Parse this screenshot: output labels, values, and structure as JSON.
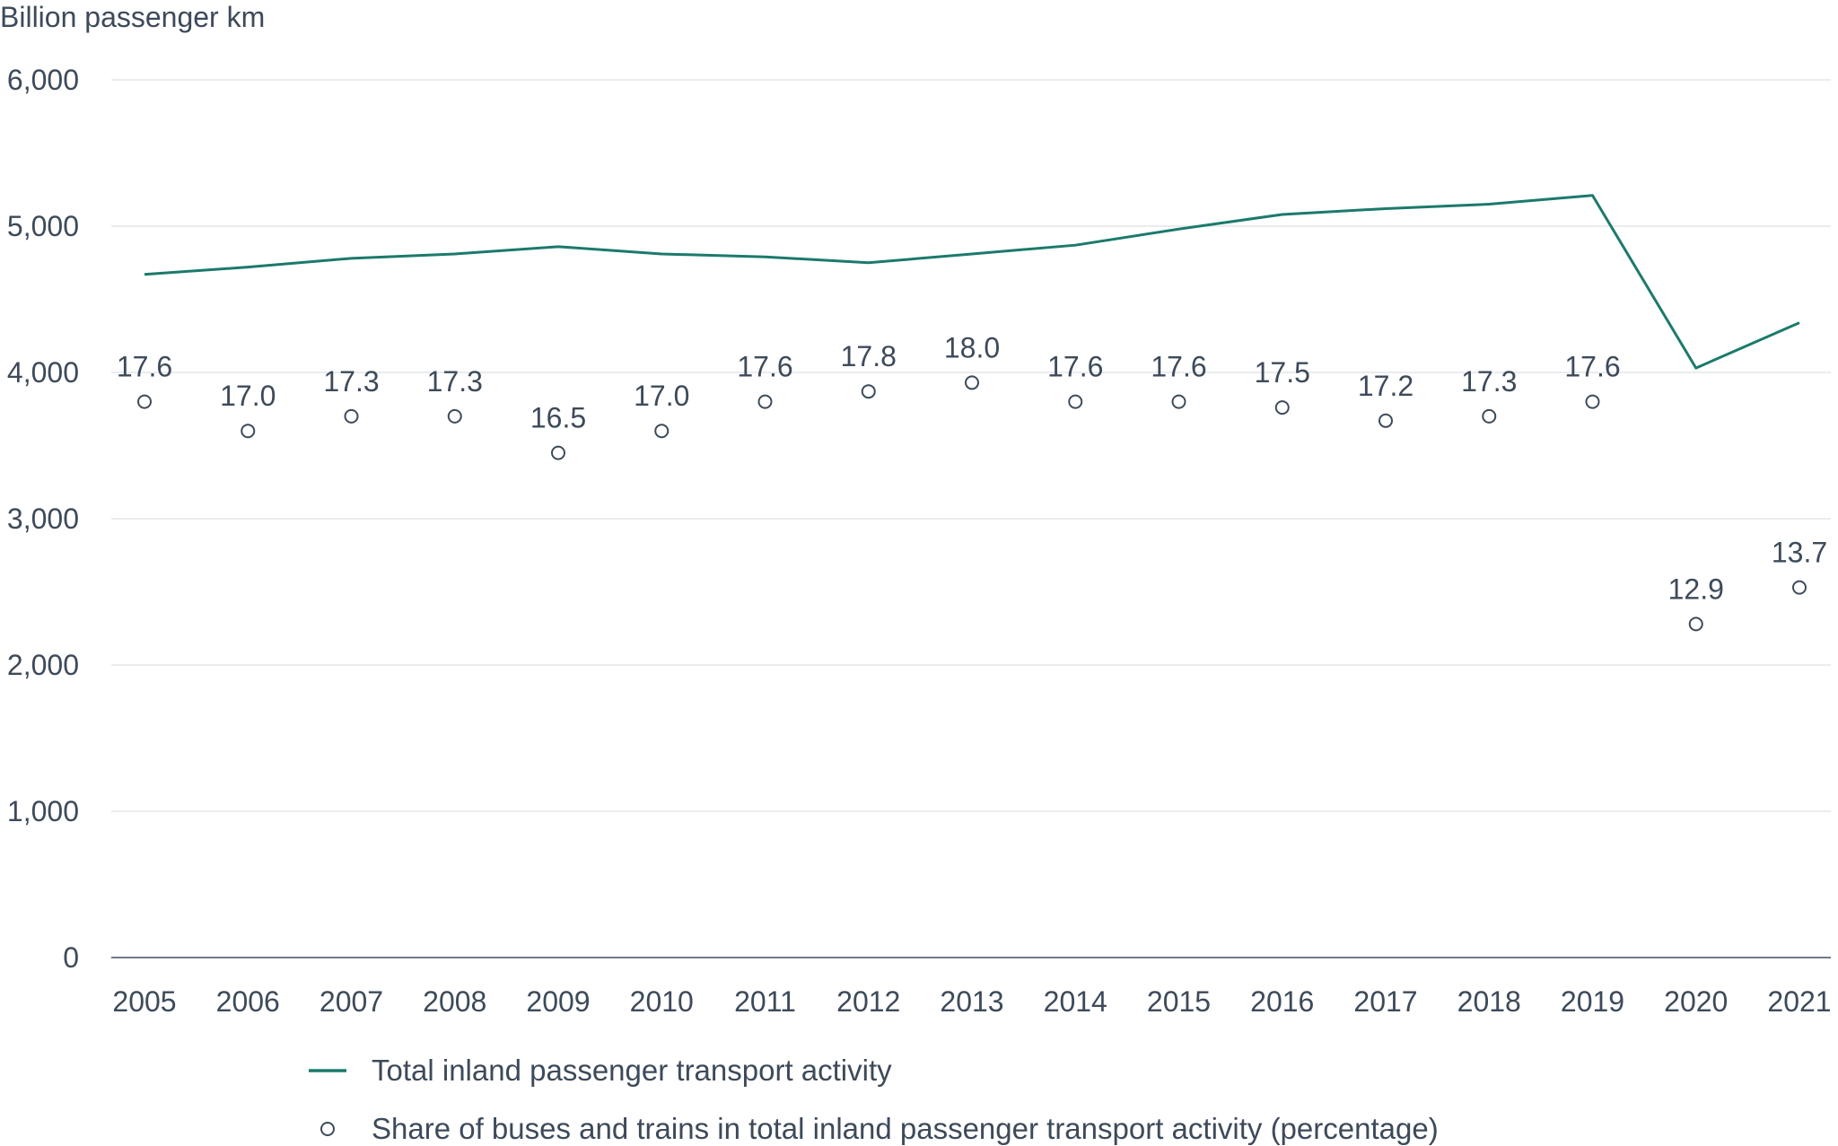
{
  "chart_data": {
    "type": "line",
    "ylabel": "Billion passenger km",
    "ylim": [
      0,
      6000
    ],
    "yticks": [
      0,
      1000,
      2000,
      3000,
      4000,
      5000,
      6000
    ],
    "ytick_labels": [
      "0",
      "1,000",
      "2,000",
      "3,000",
      "4,000",
      "5,000",
      "6,000"
    ],
    "categories": [
      "2005",
      "2006",
      "2007",
      "2008",
      "2009",
      "2010",
      "2011",
      "2012",
      "2013",
      "2014",
      "2015",
      "2016",
      "2017",
      "2018",
      "2019",
      "2020",
      "2021"
    ],
    "grid": true,
    "legend_placement": "bottom",
    "series": [
      {
        "name": "Total inland passenger transport activity",
        "kind": "line",
        "color": "#1b7a6b",
        "values": [
          4670,
          4720,
          4780,
          4810,
          4860,
          4810,
          4790,
          4750,
          4810,
          4870,
          4980,
          5080,
          5120,
          5150,
          5210,
          4030,
          4340
        ]
      },
      {
        "name": "Share of buses and trains in total inland passenger transport activity (percentage)",
        "kind": "marker",
        "color": "#3d4a5a",
        "values": [
          3800,
          3600,
          3700,
          3700,
          3450,
          3600,
          3800,
          3870,
          3930,
          3800,
          3800,
          3760,
          3670,
          3700,
          3800,
          2280,
          2530
        ],
        "labels": [
          "17.6",
          "17.0",
          "17.3",
          "17.3",
          "16.5",
          "17.0",
          "17.6",
          "17.8",
          "18.0",
          "17.6",
          "17.6",
          "17.5",
          "17.2",
          "17.3",
          "17.6",
          "12.9",
          "13.7"
        ]
      }
    ]
  }
}
